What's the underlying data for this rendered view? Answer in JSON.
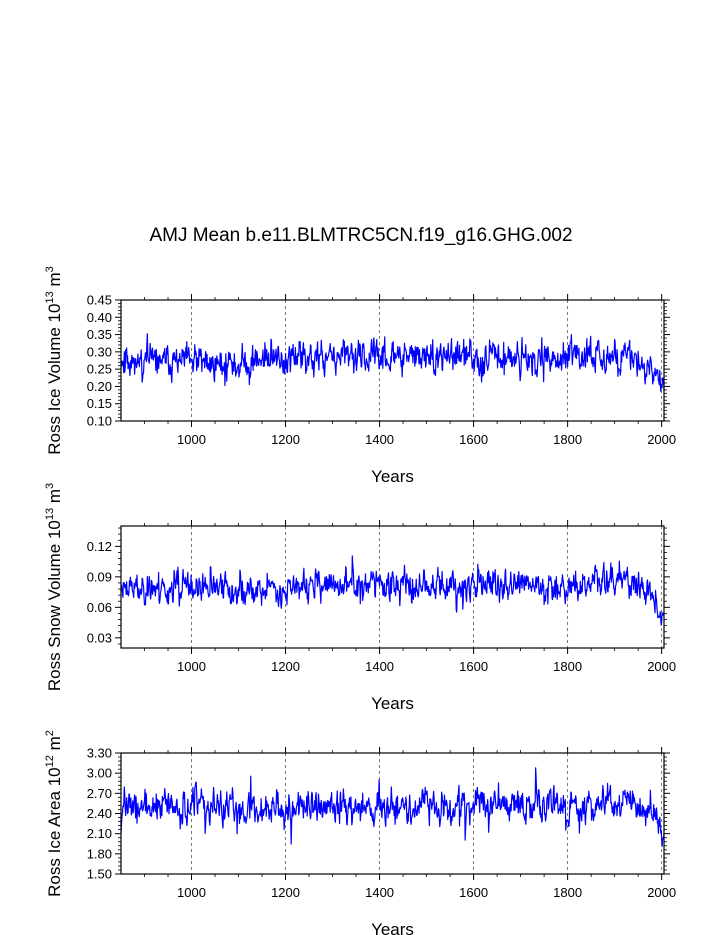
{
  "title": "AMJ Mean b.e11.BLMTRC5CN.f19_g16.GHG.002",
  "colors": {
    "series": "#0000ff",
    "axis": "#000000",
    "grid": "#555555"
  },
  "chart_data": [
    {
      "type": "line",
      "name": "ross-ice-volume",
      "title": "",
      "xlabel": "Years",
      "ylabel_parts": [
        "Ross Ice Volume 10",
        "13",
        " m",
        "3"
      ],
      "xlim": [
        850,
        2005
      ],
      "ylim": [
        0.1,
        0.45
      ],
      "xticks": [
        1000,
        1200,
        1400,
        1600,
        1800,
        2000
      ],
      "xtick_labels": [
        "1000",
        "1200",
        "1400",
        "1600",
        "1800",
        "2000"
      ],
      "yticks": [
        0.1,
        0.15,
        0.2,
        0.25,
        0.3,
        0.35,
        0.4,
        0.45
      ],
      "ytick_labels": [
        "0.10",
        "0.15",
        "0.20",
        "0.25",
        "0.30",
        "0.35",
        "0.40",
        "0.45"
      ],
      "grid_x": [
        1000,
        1200,
        1400,
        1600,
        1800,
        2000
      ],
      "series_generator": {
        "start": 850,
        "end": 2005,
        "mean": 0.28,
        "amp": 0.038,
        "seed": 11,
        "anchors": [
          [
            850,
            0.28
          ],
          [
            1000,
            0.27
          ],
          [
            1100,
            0.265
          ],
          [
            1200,
            0.28
          ],
          [
            1400,
            0.285
          ],
          [
            1600,
            0.285
          ],
          [
            1800,
            0.28
          ],
          [
            1870,
            0.295
          ],
          [
            1950,
            0.275
          ],
          [
            1980,
            0.25
          ],
          [
            2005,
            0.19
          ]
        ],
        "min": 0.15,
        "max": 0.4
      }
    },
    {
      "type": "line",
      "name": "ross-snow-volume",
      "title": "",
      "xlabel": "Years",
      "ylabel_parts": [
        "Ross Snow Volume 10",
        "13",
        " m",
        "3"
      ],
      "xlim": [
        850,
        2005
      ],
      "ylim": [
        0.02,
        0.14
      ],
      "xticks": [
        1000,
        1200,
        1400,
        1600,
        1800,
        2000
      ],
      "xtick_labels": [
        "1000",
        "1200",
        "1400",
        "1600",
        "1800",
        "2000"
      ],
      "yticks": [
        0.03,
        0.06,
        0.09,
        0.12
      ],
      "ytick_labels": [
        "0.03",
        "0.06",
        "0.09",
        "0.12"
      ],
      "grid_x": [
        1000,
        1200,
        1400,
        1600,
        1800,
        2000
      ],
      "series_generator": {
        "start": 850,
        "end": 2005,
        "mean": 0.08,
        "amp": 0.012,
        "seed": 23,
        "anchors": [
          [
            850,
            0.08
          ],
          [
            1000,
            0.078
          ],
          [
            1100,
            0.075
          ],
          [
            1200,
            0.08
          ],
          [
            1400,
            0.082
          ],
          [
            1600,
            0.082
          ],
          [
            1800,
            0.08
          ],
          [
            1870,
            0.088
          ],
          [
            1950,
            0.082
          ],
          [
            1980,
            0.07
          ],
          [
            2005,
            0.05
          ]
        ],
        "min": 0.04,
        "max": 0.122
      }
    },
    {
      "type": "line",
      "name": "ross-ice-area",
      "title": "",
      "xlabel": "Years",
      "ylabel_parts": [
        "Ross Ice Area 10",
        "12",
        " m",
        "2"
      ],
      "xlim": [
        850,
        2005
      ],
      "ylim": [
        1.5,
        3.3
      ],
      "xticks": [
        1000,
        1200,
        1400,
        1600,
        1800,
        2000
      ],
      "xtick_labels": [
        "1000",
        "1200",
        "1400",
        "1600",
        "1800",
        "2000"
      ],
      "yticks": [
        1.5,
        1.8,
        2.1,
        2.4,
        2.7,
        3.0,
        3.3
      ],
      "ytick_labels": [
        "1.50",
        "1.80",
        "2.10",
        "2.40",
        "2.70",
        "3.00",
        "3.30"
      ],
      "grid_x": [
        1000,
        1200,
        1400,
        1600,
        1800,
        2000
      ],
      "series_generator": {
        "start": 850,
        "end": 2005,
        "mean": 2.5,
        "amp": 0.2,
        "seed": 37,
        "anchors": [
          [
            850,
            2.5
          ],
          [
            1000,
            2.5
          ],
          [
            1100,
            2.45
          ],
          [
            1200,
            2.5
          ],
          [
            1400,
            2.5
          ],
          [
            1600,
            2.52
          ],
          [
            1800,
            2.5
          ],
          [
            1870,
            2.55
          ],
          [
            1950,
            2.5
          ],
          [
            1980,
            2.4
          ],
          [
            2005,
            2.1
          ]
        ],
        "min": 1.68,
        "max": 3.08
      }
    }
  ]
}
